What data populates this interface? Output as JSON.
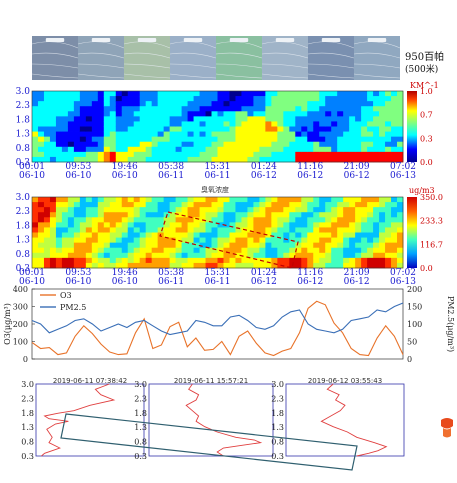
{
  "synoptic": {
    "label_line1": "950百帕",
    "label_line2": "(500米)",
    "panel_count": 8
  },
  "heat_axis": {
    "y_ticks": [
      "3.0",
      "2.3",
      "1.8",
      "1.3",
      "0.8",
      "0.3"
    ],
    "x_ticks": [
      {
        "t": "00:01",
        "d": "06-10"
      },
      {
        "t": "09:53",
        "d": "06-10"
      },
      {
        "t": "19:46",
        "d": "06-10"
      },
      {
        "t": "05:38",
        "d": "06-11"
      },
      {
        "t": "15:31",
        "d": "06-11"
      },
      {
        "t": "01:24",
        "d": "06-12"
      },
      {
        "t": "11:16",
        "d": "06-12"
      },
      {
        "t": "21:09",
        "d": "06-12"
      },
      {
        "t": "07:02",
        "d": "06-13"
      }
    ]
  },
  "lidar": {
    "unit": "KM^-1",
    "cbar_ticks": [
      "1.0",
      "0.7",
      "0.3",
      "0.0"
    ],
    "colors": [
      "#00008f",
      "#0000ff",
      "#0080ff",
      "#00ffff",
      "#80ff80",
      "#ffff00",
      "#ff8000",
      "#ff0000"
    ]
  },
  "ozone_map": {
    "title": "臭氧浓度",
    "unit": "ug/m3",
    "cbar_ticks": [
      "350.0",
      "233.3",
      "116.7",
      "0.0"
    ]
  },
  "chart_data": [
    {
      "type": "line",
      "legend": [
        "O3",
        "PM2.5"
      ],
      "ylabel_left": "O3(μg/m³)",
      "ylabel_right": "PM2.5(μg/m³)",
      "ylim_left": [
        0,
        400
      ],
      "ylim_right": [
        0,
        200
      ],
      "y_ticks_left": [
        "400",
        "300",
        "200",
        "100",
        "0"
      ],
      "y_ticks_right": [
        "200",
        "150",
        "100",
        "50",
        "0"
      ],
      "series": [
        {
          "name": "O3",
          "color": "#e8732a",
          "values": [
            95,
            60,
            65,
            25,
            35,
            130,
            190,
            145,
            85,
            40,
            25,
            30,
            150,
            230,
            60,
            80,
            185,
            210,
            70,
            120,
            50,
            55,
            100,
            25,
            130,
            160,
            90,
            35,
            20,
            45,
            60,
            150,
            290,
            330,
            310,
            205,
            150,
            60,
            25,
            20,
            120,
            190,
            130,
            25
          ]
        },
        {
          "name": "PM2.5",
          "color": "#3a6fb7",
          "values": [
            110,
            100,
            75,
            85,
            95,
            110,
            115,
            100,
            80,
            90,
            100,
            90,
            105,
            110,
            95,
            80,
            70,
            75,
            80,
            110,
            105,
            95,
            95,
            120,
            125,
            110,
            90,
            85,
            95,
            120,
            135,
            140,
            100,
            85,
            80,
            75,
            85,
            110,
            115,
            120,
            140,
            135,
            150,
            160
          ]
        }
      ]
    },
    {
      "type": "line",
      "title": "2019-06-11 07:38:42",
      "y_ticks": [
        "3.0",
        "2.3",
        "1.8",
        "1.3",
        "0.8",
        "0.3"
      ],
      "ylim": [
        0.3,
        3.0
      ],
      "xlim": [
        0,
        1
      ],
      "x": [
        0.68,
        0.55,
        0.6,
        0.72,
        0.5,
        0.35,
        0.2,
        0.08,
        0.12,
        0.3,
        0.18,
        0.1,
        0.15,
        0.12,
        0.22,
        0.08,
        0.05
      ],
      "y": [
        3.0,
        2.8,
        2.6,
        2.4,
        2.2,
        2.0,
        1.9,
        1.8,
        1.7,
        1.6,
        1.5,
        1.3,
        1.0,
        0.8,
        0.6,
        0.4,
        0.3
      ]
    },
    {
      "type": "line",
      "title": "2019-06-11 15:57:21",
      "y_ticks": [
        "3.0",
        "2.3",
        "1.8",
        "1.3",
        "0.8",
        "0.3"
      ],
      "ylim": [
        0.3,
        3.0
      ],
      "xlim": [
        0,
        1
      ],
      "x": [
        0.35,
        0.32,
        0.4,
        0.38,
        0.3,
        0.35,
        0.4,
        0.38,
        0.45,
        0.55,
        0.7,
        0.85,
        0.9,
        0.75,
        0.6,
        0.55,
        0.6
      ],
      "y": [
        3.0,
        2.8,
        2.6,
        2.4,
        2.2,
        2.0,
        1.8,
        1.6,
        1.4,
        1.2,
        1.0,
        0.9,
        0.8,
        0.7,
        0.6,
        0.45,
        0.3
      ]
    },
    {
      "type": "line",
      "title": "2019-06-12 03:55:43",
      "y_ticks": [
        "3.0",
        "2.3",
        "1.8",
        "1.3",
        "0.8",
        "0.3"
      ],
      "ylim": [
        0.3,
        3.0
      ],
      "xlim": [
        0,
        1
      ],
      "x": [
        0.4,
        0.35,
        0.45,
        0.42,
        0.5,
        0.46,
        0.38,
        0.3,
        0.4,
        0.52,
        0.6,
        0.75,
        0.85,
        0.78,
        0.7,
        0.6
      ],
      "y": [
        3.0,
        2.8,
        2.6,
        2.4,
        2.2,
        2.0,
        1.8,
        1.6,
        1.4,
        1.2,
        1.0,
        0.8,
        0.65,
        0.5,
        0.4,
        0.3
      ]
    }
  ]
}
